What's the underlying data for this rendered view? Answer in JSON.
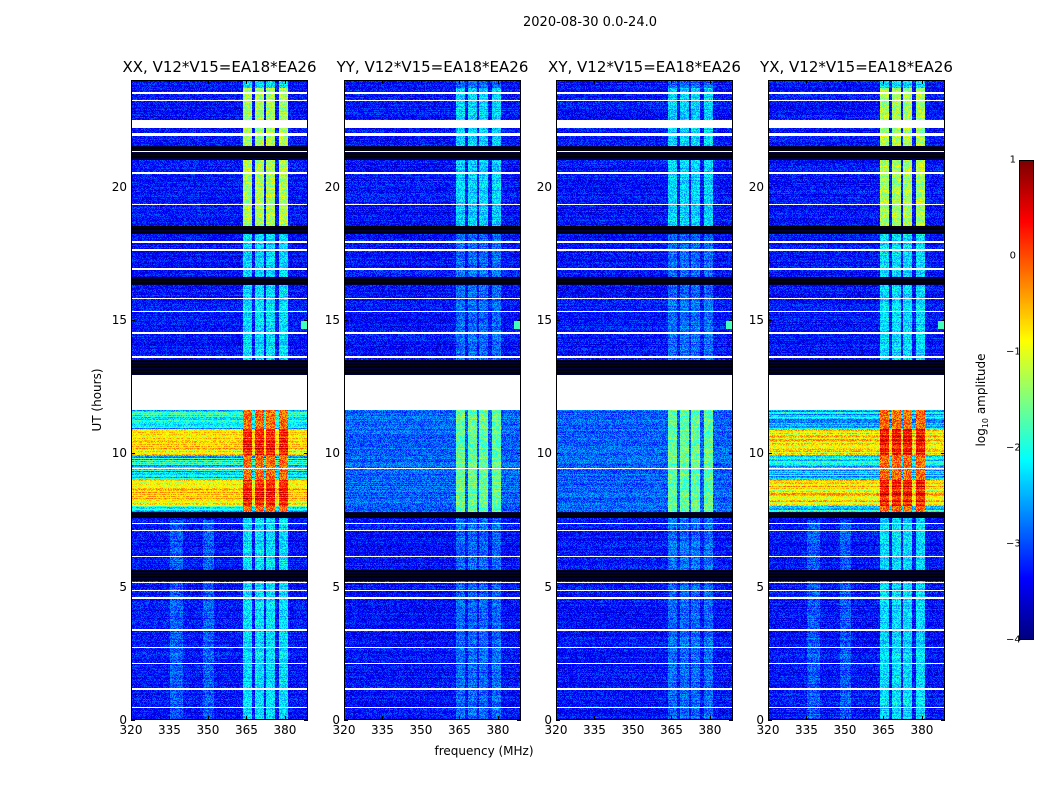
{
  "chart_data": {
    "type": "heatmap",
    "title": "2020-08-30 0.0-24.0",
    "xlabel": "frequency (MHz)",
    "ylabel": "UT (hours)",
    "xlim": [
      320,
      389
    ],
    "ylim": [
      0,
      24
    ],
    "xticks": [
      "320",
      "335",
      "350",
      "365",
      "380"
    ],
    "yticks": [
      "0",
      "5",
      "10",
      "15",
      "20"
    ],
    "xtick_values": [
      320,
      335,
      350,
      365,
      380
    ],
    "ytick_values": [
      0,
      5,
      10,
      15,
      20
    ],
    "colormap": "jet",
    "colorbar": {
      "label_main": "log",
      "label_sub": "10",
      "label_rest": " amplitude",
      "range": [
        -4,
        1
      ],
      "ticks": [
        "1",
        "0",
        "−1",
        "−2",
        "−3",
        "−4"
      ],
      "tick_values": [
        1,
        0,
        -1,
        -2,
        -3,
        -4
      ]
    },
    "panels": [
      {
        "title": "XX, V12*V15=EA18*EA26",
        "strength": "high"
      },
      {
        "title": "YY, V12*V15=EA18*EA26",
        "strength": "low"
      },
      {
        "title": "XY, V12*V15=EA18*EA26",
        "strength": "low"
      },
      {
        "title": "YX, V12*V15=EA18*EA26",
        "strength": "high"
      }
    ],
    "features": {
      "background_log_amplitude": -3.3,
      "rfi_channels_mhz": [
        [
          363.5,
          367
        ],
        [
          368,
          371.5
        ],
        [
          372.5,
          376
        ],
        [
          377.5,
          381
        ]
      ],
      "broad_bands_mhz": [
        [
          335,
          340
        ],
        [
          348,
          352
        ]
      ],
      "blank_hours": [
        [
          11.6,
          12.9
        ],
        [
          22.2,
          22.5
        ],
        [
          21.9,
          22.0
        ]
      ],
      "flagged_dark_hours": [
        [
          7.55,
          7.8
        ],
        [
          12.9,
          13.5
        ],
        [
          21.0,
          21.5
        ],
        [
          18.2,
          18.5
        ],
        [
          16.3,
          16.6
        ],
        [
          5.2,
          5.6
        ]
      ],
      "white_line_hours": [
        0.45,
        1.15,
        2.1,
        2.7,
        3.35,
        4.55,
        4.85,
        5.15,
        6.1,
        7.1,
        7.35,
        9.4,
        13.6,
        14.5,
        15.3,
        15.8,
        16.9,
        17.6,
        17.9,
        19.3,
        20.5,
        21.3,
        23.2,
        23.5
      ],
      "strong_rfi_hours": [
        7.8,
        11.6
      ],
      "high_rfi_channel_hours": [
        18.5,
        23.7
      ]
    }
  }
}
